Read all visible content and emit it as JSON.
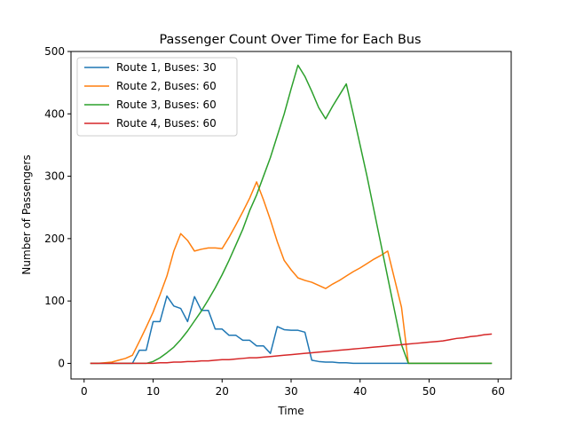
{
  "chart_data": {
    "type": "line",
    "title": "Passenger Count Over Time for Each Bus",
    "xlabel": "Time",
    "ylabel": "Number of Passengers",
    "xlim": [
      -1.9,
      61.9
    ],
    "ylim": [
      -25,
      500
    ],
    "xticks": [
      0,
      10,
      20,
      30,
      40,
      50,
      60
    ],
    "yticks": [
      0,
      100,
      200,
      300,
      400,
      500
    ],
    "grid": false,
    "legend_position": "top-left",
    "x": [
      1,
      2,
      3,
      4,
      5,
      6,
      7,
      8,
      9,
      10,
      11,
      12,
      13,
      14,
      15,
      16,
      17,
      18,
      19,
      20,
      21,
      22,
      23,
      24,
      25,
      26,
      27,
      28,
      29,
      30,
      31,
      32,
      33,
      34,
      35,
      36,
      37,
      38,
      39,
      40,
      41,
      42,
      43,
      44,
      45,
      46,
      47,
      48,
      49,
      50,
      51,
      52,
      53,
      54,
      55,
      56,
      57,
      58,
      59
    ],
    "series": [
      {
        "name": "Route 1, Buses: 30",
        "color": "#1f77b4",
        "values": [
          0,
          0,
          0,
          0,
          0,
          0,
          0,
          21,
          21,
          67,
          67,
          108,
          92,
          88,
          67,
          107,
          85,
          85,
          55,
          55,
          45,
          45,
          37,
          37,
          28,
          28,
          16,
          59,
          54,
          53,
          53,
          50,
          5,
          3,
          2,
          2,
          1,
          1,
          0,
          0,
          0,
          0,
          0,
          0,
          0,
          0,
          0,
          0,
          0,
          0,
          0,
          0,
          0,
          0,
          0,
          0,
          0,
          0,
          0
        ]
      },
      {
        "name": "Route 2, Buses: 60",
        "color": "#ff7f0e",
        "values": [
          0,
          0,
          1,
          2,
          5,
          8,
          13,
          35,
          58,
          82,
          110,
          140,
          180,
          208,
          197,
          180,
          183,
          185,
          185,
          184,
          202,
          222,
          243,
          265,
          291,
          262,
          230,
          195,
          165,
          150,
          137,
          133,
          130,
          125,
          120,
          127,
          133,
          140,
          147,
          153,
          160,
          167,
          173,
          180,
          135,
          90,
          0,
          0,
          0,
          0,
          0,
          0,
          0,
          0,
          0,
          0,
          0,
          0,
          0
        ]
      },
      {
        "name": "Route 3, Buses: 60",
        "color": "#2ca02c",
        "values": [
          0,
          0,
          0,
          0,
          0,
          0,
          0,
          0,
          0,
          3,
          9,
          17,
          26,
          38,
          52,
          68,
          84,
          102,
          121,
          142,
          165,
          190,
          215,
          245,
          270,
          300,
          330,
          365,
          400,
          440,
          478,
          460,
          436,
          410,
          392,
          412,
          430,
          448,
          400,
          350,
          300,
          246,
          192,
          138,
          84,
          30,
          0,
          0,
          0,
          0,
          0,
          0,
          0,
          0,
          0,
          0,
          0,
          0,
          0
        ]
      },
      {
        "name": "Route 4, Buses: 60",
        "color": "#d62728",
        "values": [
          0,
          0,
          0,
          0,
          0,
          0,
          0,
          0,
          0,
          0,
          1,
          1,
          2,
          2,
          3,
          3,
          4,
          4,
          5,
          6,
          6,
          7,
          8,
          9,
          9,
          10,
          11,
          12,
          13,
          14,
          15,
          16,
          17,
          18,
          19,
          20,
          21,
          22,
          23,
          24,
          25,
          26,
          27,
          28,
          29,
          30,
          31,
          32,
          33,
          34,
          35,
          36,
          38,
          40,
          41,
          43,
          44,
          46,
          47
        ]
      }
    ]
  }
}
